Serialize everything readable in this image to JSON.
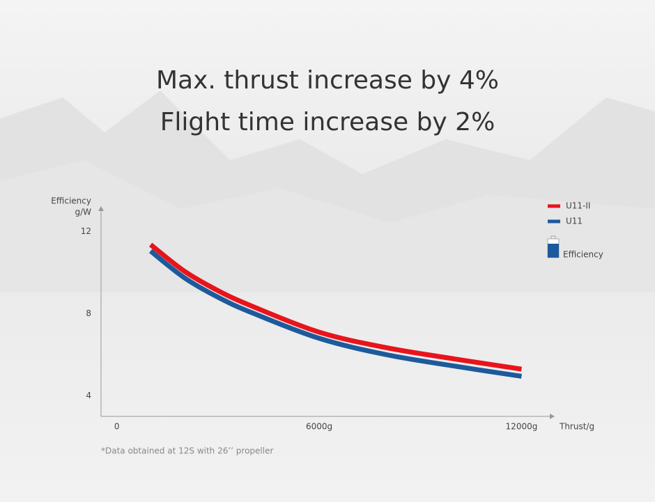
{
  "chart_data": {
    "type": "line",
    "title": [
      "Max. thrust increase by 4%",
      "Flight time increase by 2%"
    ],
    "ylabel": [
      "Efficiency",
      "g/W"
    ],
    "xlabel": "Thrust/g",
    "x": [
      1000,
      2000,
      3000,
      4000,
      6000,
      8000,
      10000,
      12000
    ],
    "series": [
      {
        "name": "U11-II",
        "color": "#e8141c",
        "values": [
          11.36,
          10.07,
          9.12,
          8.37,
          7.1,
          6.34,
          5.8,
          5.3
        ]
      },
      {
        "name": "U11",
        "color": "#1d5a9c",
        "values": [
          11.05,
          9.75,
          8.8,
          8.05,
          6.8,
          6.0,
          5.45,
          4.95
        ]
      }
    ],
    "xlim": [
      -470,
      12900
    ],
    "ylim": [
      3,
      13
    ],
    "xticks": [
      0,
      {
        "value": 6000,
        "label": "6000g"
      },
      {
        "value": 12000,
        "label": "12000g"
      }
    ],
    "yticks": [
      4,
      8,
      12
    ],
    "legend_extra": "Efficiency",
    "footnote": "*Data obtained at 12S with 26’’ propeller",
    "grid": false
  }
}
